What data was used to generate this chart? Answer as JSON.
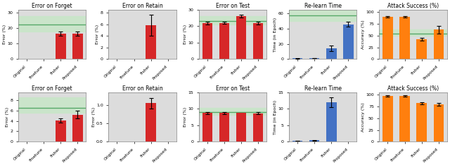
{
  "titles": [
    [
      "Error on Forget",
      "Error on Retain",
      "Error on Test",
      "Re-learn Time",
      "Attack Success (%)"
    ],
    [
      "Error on Forget",
      "Error on Retain",
      "Error on Test",
      "Re-learn Time",
      "Attack Success (%)"
    ]
  ],
  "ylabels": [
    [
      "Error (%)",
      "Error (%)",
      "Error (%)",
      "Time (in Epoch)",
      "Accuracy (%)"
    ],
    [
      "Error (%)",
      "Error (%)",
      "Error (%)",
      "Time (in Epoch)",
      "Accuracy (%)"
    ]
  ],
  "categories": [
    "Original",
    "Finetune",
    "Fisher",
    "Proposed"
  ],
  "bar_values": [
    [
      [
        0,
        0,
        16.5,
        16.5
      ],
      [
        0,
        0,
        5.8,
        0
      ],
      [
        22.0,
        22.0,
        26.0,
        22.0
      ],
      [
        1.0,
        1.5,
        14.5,
        46.0
      ],
      [
        90.0,
        90.0,
        43.0,
        63.0
      ]
    ],
    [
      [
        0,
        0,
        4.1,
        5.2
      ],
      [
        0,
        0,
        1.05,
        0
      ],
      [
        8.7,
        8.7,
        8.7,
        8.6
      ],
      [
        0.3,
        0.4,
        12.0,
        0
      ],
      [
        97.0,
        97.0,
        82.0,
        79.0
      ]
    ]
  ],
  "bar_errors": [
    [
      [
        0,
        0,
        1.5,
        1.2
      ],
      [
        0,
        0,
        1.8,
        0
      ],
      [
        0.8,
        0.6,
        0.8,
        0.8
      ],
      [
        0.3,
        0.3,
        3.5,
        3.0
      ],
      [
        2.0,
        2.0,
        3.0,
        8.0
      ]
    ],
    [
      [
        0,
        0,
        0.4,
        0.7
      ],
      [
        0,
        0,
        0.15,
        0
      ],
      [
        0.3,
        0.3,
        0,
        0.3
      ],
      [
        0.05,
        0.05,
        1.5,
        0
      ],
      [
        1.0,
        1.0,
        2.0,
        3.0
      ]
    ]
  ],
  "bar_colors": [
    [
      "red",
      "red",
      "red",
      "steelblue",
      "orange"
    ],
    [
      "red",
      "red",
      "red",
      "steelblue",
      "orange"
    ]
  ],
  "ylims": [
    [
      [
        0,
        32
      ],
      [
        0,
        8.5
      ],
      [
        0,
        30
      ],
      [
        0,
        65
      ],
      [
        0,
        105
      ]
    ],
    [
      [
        0,
        9.5
      ],
      [
        0,
        1.35
      ],
      [
        0,
        15
      ],
      [
        0,
        15
      ],
      [
        0,
        105
      ]
    ]
  ],
  "green_line": [
    [
      22.5,
      null,
      23.0,
      58.0,
      55.0
    ],
    [
      6.5,
      null,
      9.0,
      null,
      null
    ]
  ],
  "green_band": [
    [
      [
        18.0,
        28.0
      ],
      null,
      [
        21.0,
        26.0
      ],
      [
        50.0,
        65.0
      ],
      [
        50.0,
        63.0
      ]
    ],
    [
      [
        5.5,
        8.5
      ],
      null,
      [
        8.2,
        10.2
      ],
      null,
      null
    ]
  ],
  "bar_visible": [
    [
      [
        false,
        false,
        true,
        true
      ],
      [
        false,
        false,
        true,
        false
      ],
      [
        true,
        true,
        true,
        true
      ],
      [
        true,
        true,
        true,
        true
      ],
      [
        true,
        true,
        true,
        true
      ]
    ],
    [
      [
        false,
        false,
        true,
        true
      ],
      [
        false,
        false,
        true,
        false
      ],
      [
        true,
        true,
        true,
        true
      ],
      [
        true,
        true,
        true,
        false
      ],
      [
        true,
        true,
        true,
        true
      ]
    ]
  ],
  "red_color": "#d62728",
  "blue_color": "#4472c4",
  "orange_color": "#ff7f0e",
  "green_line_color": "#55a868",
  "green_band_color": "#c8e6c9",
  "bg_color": "#dcdcdc"
}
